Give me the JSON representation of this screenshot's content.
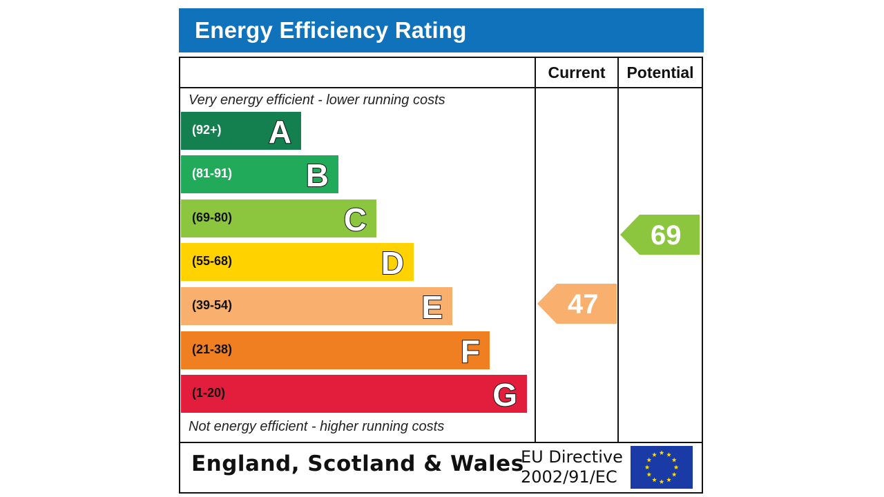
{
  "header": {
    "title": "Energy Efficiency Rating",
    "background": "#0f72bb"
  },
  "columns": {
    "current": "Current",
    "potential": "Potential"
  },
  "notes": {
    "top": "Very energy efficient - lower running costs",
    "bottom": "Not energy efficient - higher running costs"
  },
  "chart_data": {
    "type": "bar",
    "categories": [
      "A",
      "B",
      "C",
      "D",
      "E",
      "F",
      "G"
    ],
    "bands": [
      {
        "letter": "A",
        "range": "(92+)",
        "color": "#148050",
        "range_color": "#ffffff"
      },
      {
        "letter": "B",
        "range": "(81-91)",
        "color": "#20aa5a",
        "range_color": "#ffffff"
      },
      {
        "letter": "C",
        "range": "(69-80)",
        "color": "#8cc63f",
        "range_color": "#111111"
      },
      {
        "letter": "D",
        "range": "(55-68)",
        "color": "#ffd200",
        "range_color": "#111111"
      },
      {
        "letter": "E",
        "range": "(39-54)",
        "color": "#f9b06e",
        "range_color": "#111111"
      },
      {
        "letter": "F",
        "range": "(21-38)",
        "color": "#f07f22",
        "range_color": "#111111"
      },
      {
        "letter": "G",
        "range": "(1-20)",
        "color": "#e31d3c",
        "range_color": "#111111"
      }
    ],
    "current": {
      "value": "47",
      "band": "E",
      "color": "#f9b06e"
    },
    "potential": {
      "value": "69",
      "band": "C",
      "color": "#8cc63f"
    }
  },
  "footer": {
    "region": "England, Scotland & Wales",
    "directive_line1": "EU Directive",
    "directive_line2": "2002/91/EC",
    "flag_color": "#1a3aa6",
    "star_color": "#ffdd00"
  }
}
